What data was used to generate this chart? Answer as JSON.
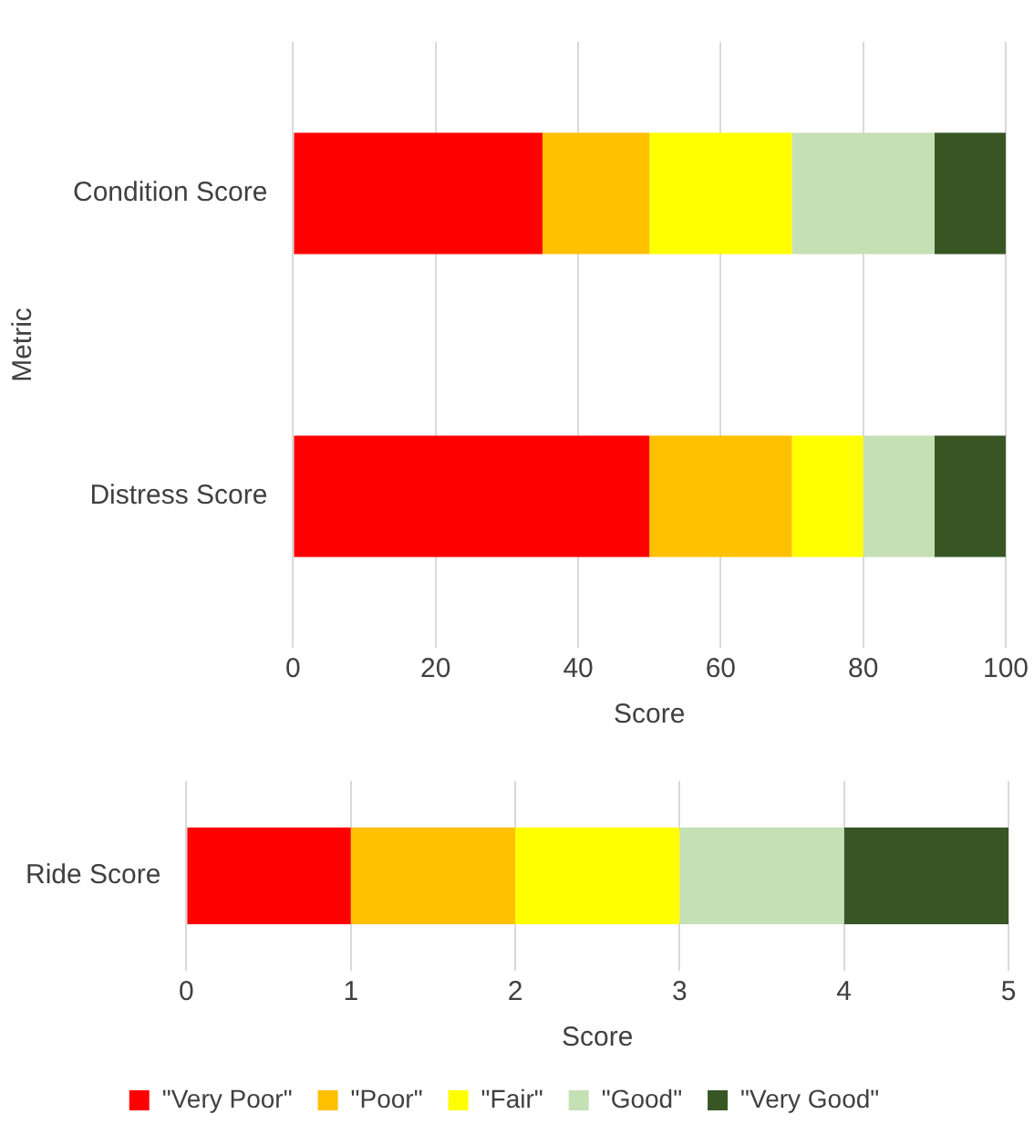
{
  "chart_data": [
    {
      "type": "bar",
      "orientation": "horizontal",
      "stacked": true,
      "categories": [
        "Condition Score",
        "Distress Score"
      ],
      "xlabel": "Score",
      "ylabel": "Metric",
      "xlim": [
        0,
        100
      ],
      "xticks": [
        0,
        20,
        40,
        60,
        80,
        100
      ],
      "grid": "x",
      "legend": false,
      "series": [
        {
          "color": "#ff0000",
          "values": [
            35,
            50
          ]
        },
        {
          "color": "#ffc000",
          "values": [
            15,
            20
          ]
        },
        {
          "color": "#ffff00",
          "values": [
            20,
            10
          ]
        },
        {
          "color": "#c5e0b4",
          "values": [
            20,
            10
          ]
        },
        {
          "color": "#375623",
          "values": [
            10,
            10
          ]
        }
      ]
    },
    {
      "type": "bar",
      "orientation": "horizontal",
      "stacked": true,
      "categories": [
        "Ride Score"
      ],
      "xlabel": "Score",
      "xlim": [
        0,
        5
      ],
      "xticks": [
        0,
        1,
        2,
        3,
        4,
        5
      ],
      "grid": "x",
      "legend": "bottom",
      "series": [
        {
          "name": "\"Very Poor\"",
          "color": "#ff0000",
          "values": [
            1
          ]
        },
        {
          "name": "\"Poor\"",
          "color": "#ffc000",
          "values": [
            1
          ]
        },
        {
          "name": "\"Fair\"",
          "color": "#ffff00",
          "values": [
            1
          ]
        },
        {
          "name": "\"Good\"",
          "color": "#c5e0b4",
          "values": [
            1
          ]
        },
        {
          "name": "\"Very Good\"",
          "color": "#375623",
          "values": [
            1
          ]
        }
      ]
    }
  ]
}
